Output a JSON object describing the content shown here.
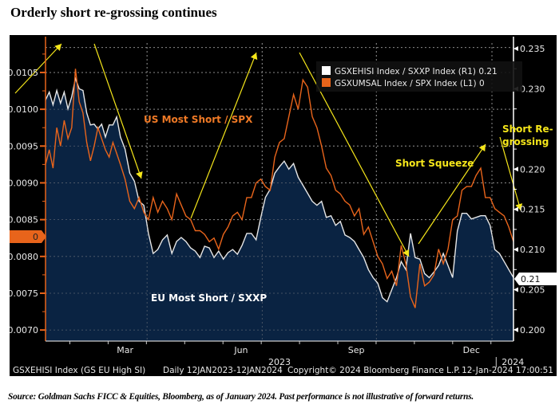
{
  "page": {
    "title": "Orderly short re-grossing continues",
    "source": "Source: Goldman Sachs FICC & Equities, Bloomberg, as of January 2024. Past performance is not illustrative of forward returns."
  },
  "bloomberg": {
    "footer_left": "GSXEHISI Index (GS EU High SI)",
    "footer_range": "Daily 12JAN2023-12JAN2024",
    "footer_copyright": "Copyright© 2024 Bloomberg Finance L.P.",
    "footer_timestamp": "12-Jan-2024 17:00:51",
    "left_last_badge": "0",
    "right_last_badge": "0.21"
  },
  "colors": {
    "eu_line": "#e6e6e6",
    "eu_fill": "#0a2342",
    "us_line": "#e8641b",
    "annotation": "#f5e61a",
    "axis_left": "#e8641b",
    "axis_right": "#ffffff",
    "grid": "#8a8a8a"
  },
  "chart_data": {
    "type": "line",
    "title": "Orderly short re-grossing continues",
    "xlabel": "",
    "x_ticks": [
      "Mar",
      "Jun",
      "Sep",
      "Dec"
    ],
    "year_labels": [
      "2023",
      "2024"
    ],
    "x_range": [
      "2023-01-12",
      "2024-01-12"
    ],
    "left_axis": {
      "label": "GSXUMSAL Index / SPX Index (L1)",
      "ticks": [
        "0.0070",
        "0.0075",
        "0.0080",
        "0.0085",
        "0.0090",
        "0.0095",
        "0.0100",
        "0.0105"
      ],
      "ylim": [
        0.00685,
        0.0109
      ]
    },
    "right_axis": {
      "label": "GSXEHISI Index / SXXP Index (R1)",
      "ticks": [
        "0.200",
        "0.205",
        "0.210",
        "0.215",
        "0.220",
        "0.225",
        "0.230",
        "0.235"
      ],
      "ticks_shown": [
        "0.200",
        "0.205",
        "0.210",
        "0.215",
        "0.220",
        "0.230",
        "0.235"
      ],
      "ylim": [
        0.1986,
        0.2357
      ]
    },
    "grid": true,
    "legend_position": "top-right",
    "legend": [
      {
        "name": "GSXEHISI Index / SXXP Index (R1)",
        "last": "0.21",
        "color": "#ffffff"
      },
      {
        "name": "GSXUMSAL Index / SPX Index (L1)",
        "last": "0",
        "color": "#e8641b"
      }
    ],
    "series": [
      {
        "name": "GSXEHISI Index / SXXP Index (R1)",
        "label": "EU Most Short / SXXP",
        "axis": "right",
        "style": "area",
        "t": [
          0.0,
          0.008,
          0.016,
          0.024,
          0.032,
          0.04,
          0.048,
          0.056,
          0.064,
          0.072,
          0.08,
          0.088,
          0.096,
          0.104,
          0.112,
          0.12,
          0.128,
          0.136,
          0.144,
          0.152,
          0.16,
          0.17,
          0.18,
          0.19,
          0.2,
          0.21,
          0.22,
          0.23,
          0.24,
          0.25,
          0.26,
          0.27,
          0.28,
          0.29,
          0.3,
          0.31,
          0.32,
          0.33,
          0.34,
          0.35,
          0.36,
          0.37,
          0.38,
          0.39,
          0.4,
          0.41,
          0.42,
          0.43,
          0.44,
          0.45,
          0.46,
          0.47,
          0.48,
          0.49,
          0.5,
          0.51,
          0.52,
          0.53,
          0.54,
          0.55,
          0.56,
          0.57,
          0.58,
          0.59,
          0.6,
          0.61,
          0.62,
          0.63,
          0.64,
          0.65,
          0.66,
          0.67,
          0.68,
          0.69,
          0.7,
          0.71,
          0.72,
          0.73,
          0.74,
          0.75,
          0.76,
          0.77,
          0.78,
          0.79,
          0.8,
          0.81,
          0.82,
          0.83,
          0.84,
          0.85,
          0.86,
          0.87,
          0.88,
          0.89,
          0.9,
          0.91,
          0.92,
          0.93,
          0.94,
          0.95,
          0.96,
          0.97,
          0.98,
          0.99,
          1.0
        ],
        "values": [
          0.2286,
          0.2296,
          0.228,
          0.2298,
          0.2282,
          0.2296,
          0.2275,
          0.229,
          0.2313,
          0.23,
          0.2298,
          0.227,
          0.2255,
          0.2256,
          0.225,
          0.2256,
          0.224,
          0.2255,
          0.2255,
          0.2265,
          0.224,
          0.2225,
          0.2195,
          0.2185,
          0.216,
          0.2155,
          0.212,
          0.2095,
          0.21,
          0.2112,
          0.2118,
          0.2095,
          0.211,
          0.2115,
          0.211,
          0.2102,
          0.2098,
          0.209,
          0.2104,
          0.2102,
          0.209,
          0.2098,
          0.2088,
          0.2096,
          0.21,
          0.2094,
          0.2105,
          0.212,
          0.212,
          0.2112,
          0.214,
          0.2165,
          0.2175,
          0.2195,
          0.2203,
          0.221,
          0.22,
          0.2207,
          0.219,
          0.218,
          0.217,
          0.216,
          0.2155,
          0.216,
          0.214,
          0.2142,
          0.213,
          0.2135,
          0.2118,
          0.2115,
          0.211,
          0.21,
          0.209,
          0.2075,
          0.2065,
          0.2058,
          0.204,
          0.2035,
          0.205,
          0.2065,
          0.2085,
          0.2075,
          0.212,
          0.209,
          0.2088,
          0.207,
          0.2065,
          0.2072,
          0.208,
          0.2095,
          0.208,
          0.2065,
          0.2123,
          0.2145,
          0.2145,
          0.2138,
          0.214,
          0.2142,
          0.2142,
          0.213,
          0.21,
          0.2095,
          0.2085,
          0.2075,
          0.2065
        ]
      },
      {
        "name": "GSXUMSAL Index / SPX Index (L1)",
        "label": "US Most Short / SPX",
        "axis": "left",
        "style": "line",
        "t": [
          0.0,
          0.008,
          0.016,
          0.024,
          0.032,
          0.04,
          0.048,
          0.056,
          0.064,
          0.072,
          0.08,
          0.088,
          0.096,
          0.104,
          0.112,
          0.12,
          0.128,
          0.136,
          0.144,
          0.152,
          0.16,
          0.17,
          0.18,
          0.19,
          0.2,
          0.21,
          0.22,
          0.23,
          0.24,
          0.25,
          0.26,
          0.27,
          0.28,
          0.29,
          0.3,
          0.31,
          0.32,
          0.33,
          0.34,
          0.35,
          0.36,
          0.37,
          0.38,
          0.39,
          0.4,
          0.41,
          0.42,
          0.43,
          0.44,
          0.45,
          0.46,
          0.47,
          0.48,
          0.49,
          0.5,
          0.51,
          0.52,
          0.53,
          0.54,
          0.55,
          0.56,
          0.57,
          0.58,
          0.59,
          0.6,
          0.61,
          0.62,
          0.63,
          0.64,
          0.65,
          0.66,
          0.67,
          0.68,
          0.69,
          0.7,
          0.71,
          0.72,
          0.73,
          0.74,
          0.75,
          0.76,
          0.77,
          0.78,
          0.79,
          0.8,
          0.81,
          0.82,
          0.83,
          0.84,
          0.85,
          0.86,
          0.87,
          0.88,
          0.89,
          0.9,
          0.91,
          0.92,
          0.93,
          0.94,
          0.95,
          0.96,
          0.97,
          0.98,
          0.99,
          1.0
        ],
        "values": [
          0.00925,
          0.00945,
          0.0092,
          0.00975,
          0.0095,
          0.00985,
          0.0096,
          0.00975,
          0.01055,
          0.0101,
          0.00995,
          0.00955,
          0.0093,
          0.0095,
          0.00975,
          0.0096,
          0.00945,
          0.00935,
          0.00955,
          0.0094,
          0.00925,
          0.00905,
          0.00875,
          0.00865,
          0.0088,
          0.0086,
          0.0085,
          0.0088,
          0.0086,
          0.00875,
          0.00865,
          0.0085,
          0.00885,
          0.0087,
          0.00855,
          0.0085,
          0.00835,
          0.00835,
          0.0083,
          0.0082,
          0.00825,
          0.0081,
          0.0083,
          0.0084,
          0.00855,
          0.0086,
          0.0085,
          0.0088,
          0.0088,
          0.009,
          0.00905,
          0.00895,
          0.0089,
          0.00935,
          0.00955,
          0.0096,
          0.0099,
          0.0102,
          0.01,
          0.0104,
          0.0103,
          0.0099,
          0.00975,
          0.0095,
          0.0092,
          0.0091,
          0.0089,
          0.00885,
          0.00875,
          0.0087,
          0.00855,
          0.00865,
          0.0083,
          0.0084,
          0.0082,
          0.008,
          0.0079,
          0.0077,
          0.0078,
          0.0076,
          0.00815,
          0.0079,
          0.00745,
          0.0073,
          0.0079,
          0.0076,
          0.00765,
          0.00775,
          0.0081,
          0.0079,
          0.0081,
          0.0085,
          0.00855,
          0.0089,
          0.00895,
          0.00895,
          0.0091,
          0.0092,
          0.0088,
          0.0088,
          0.00865,
          0.0086,
          0.00855,
          0.0084,
          0.0082
        ]
      }
    ],
    "annotations": [
      {
        "text": "US Most Short / SPX",
        "color": "#f07a26"
      },
      {
        "text": "EU Most Short / SXXP",
        "color": "#ffffff"
      },
      {
        "text": "Short Squeeze",
        "color": "#f5e61a"
      },
      {
        "text": "Short Re-",
        "color": "#f5e61a"
      },
      {
        "text": "grossing",
        "color": "#f5e61a"
      }
    ],
    "arrows": [
      {
        "direction": "up"
      },
      {
        "direction": "down"
      },
      {
        "direction": "up"
      },
      {
        "direction": "down"
      },
      {
        "direction": "up"
      },
      {
        "direction": "down"
      }
    ]
  }
}
